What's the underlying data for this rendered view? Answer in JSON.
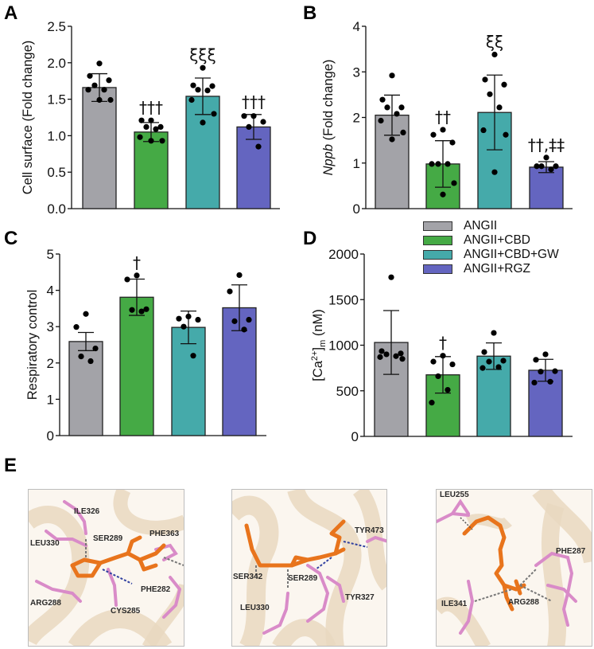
{
  "colors": {
    "ANGII": "#A3A3A8",
    "ANGII+CBD": "#45AA45",
    "ANGII+CBD+GW": "#45AAAA",
    "ANGII+RGZ": "#6465C0",
    "ligand": "#E8741C",
    "residue": "#D98BC8",
    "ribbon": "#E9D8BF",
    "hbond": "#3040A0"
  },
  "legend": {
    "items": [
      {
        "label": "ANGII",
        "color": "#A3A3A8"
      },
      {
        "label": "ANGII+CBD",
        "color": "#45AA45"
      },
      {
        "label": "ANGII+CBD+GW",
        "color": "#45AAAA"
      },
      {
        "label": "ANGII+RGZ",
        "color": "#6465C0"
      }
    ]
  },
  "panels": {
    "A": {
      "label": "A"
    },
    "B": {
      "label": "B"
    },
    "C": {
      "label": "C"
    },
    "D": {
      "label": "D"
    },
    "E": {
      "label": "E"
    }
  },
  "chart_data": [
    {
      "panel": "A",
      "type": "bar",
      "title": "",
      "xlabel": "",
      "ylabel": "Cell surface (Fold change)",
      "ylim": [
        0,
        2.5
      ],
      "yticks": [
        "0.0",
        "0.5",
        "1.0",
        "1.5",
        "2.0",
        "2.5"
      ],
      "grid": false,
      "categories": [
        "ANGII",
        "ANGII+CBD",
        "ANGII+CBD+GW",
        "ANGII+RGZ"
      ],
      "values": [
        1.66,
        1.05,
        1.54,
        1.12
      ],
      "error": [
        0.19,
        0.13,
        0.25,
        0.17
      ],
      "points": [
        [
          1.99,
          1.82,
          1.76,
          1.69,
          1.63,
          1.63,
          1.49,
          1.49
        ],
        [
          1.21,
          1.21,
          1.12,
          1.12,
          1.09,
          0.98,
          0.93,
          0.93
        ],
        [
          1.93,
          1.69,
          1.68,
          1.63,
          1.62,
          1.49,
          1.3,
          1.18
        ],
        [
          1.27,
          1.27,
          1.19,
          1.12,
          0.85
        ]
      ],
      "annotations": [
        "",
        "†††",
        "ξξξ",
        "†††"
      ]
    },
    {
      "panel": "B",
      "type": "bar",
      "title": "",
      "xlabel": "",
      "ylabel": "Nppb (Fold change)",
      "ylabel_italic": "Nppb",
      "ylabel_rest": " (Fold change)",
      "ylim": [
        0,
        4
      ],
      "yticks": [
        "0",
        "1",
        "2",
        "3",
        "4"
      ],
      "grid": false,
      "categories": [
        "ANGII",
        "ANGII+CBD",
        "ANGII+CBD+GW",
        "ANGII+RGZ"
      ],
      "values": [
        2.05,
        0.98,
        2.11,
        0.91
      ],
      "error": [
        0.44,
        0.51,
        0.82,
        0.12
      ],
      "points": [
        [
          2.92,
          2.39,
          2.22,
          2.22,
          2.08,
          1.93,
          1.67,
          1.52
        ],
        [
          1.73,
          1.62,
          1.45,
          0.98,
          0.98,
          0.98,
          0.56,
          0.31
        ],
        [
          3.38,
          2.83,
          2.72,
          2.51,
          2.22,
          1.72,
          1.62,
          0.8
        ],
        [
          1.12,
          0.93,
          0.93,
          0.93,
          0.86
        ]
      ],
      "annotations": [
        "",
        "††",
        "ξξ",
        "††,‡‡"
      ]
    },
    {
      "panel": "C",
      "type": "bar",
      "title": "",
      "xlabel": "",
      "ylabel": "Respiratory control",
      "ylim": [
        0,
        5
      ],
      "yticks": [
        "0",
        "1",
        "2",
        "3",
        "4",
        "5"
      ],
      "grid": false,
      "categories": [
        "ANGII",
        "ANGII+CBD",
        "ANGII+CBD+GW",
        "ANGII+RGZ"
      ],
      "values": [
        2.59,
        3.81,
        2.98,
        3.52
      ],
      "error": [
        0.25,
        0.5,
        0.45,
        0.63
      ],
      "points": [
        [
          3.35,
          2.99,
          2.4,
          2.18,
          2.05
        ],
        [
          4.41,
          4.3,
          3.48,
          3.46,
          3.42
        ],
        [
          3.28,
          3.22,
          3.19,
          3.0,
          2.2
        ],
        [
          4.42,
          3.97,
          3.19,
          3.15,
          2.92
        ]
      ],
      "annotations": [
        "",
        "†",
        "",
        ""
      ]
    },
    {
      "panel": "D",
      "type": "bar",
      "title": "",
      "xlabel": "",
      "ylabel": "[Ca2+]m (nM)",
      "ylim": [
        0,
        2000
      ],
      "yticks": [
        "0",
        "500",
        "1000",
        "1500",
        "2000"
      ],
      "grid": false,
      "categories": [
        "ANGII",
        "ANGII+CBD",
        "ANGII+CBD+GW",
        "ANGII+RGZ"
      ],
      "values": [
        1030,
        675,
        880,
        725
      ],
      "error": [
        350,
        200,
        145,
        120
      ],
      "points": [
        [
          1745,
          935,
          910,
          900,
          880,
          870,
          850
        ],
        [
          885,
          820,
          790,
          660,
          510,
          370
        ],
        [
          1135,
          925,
          830,
          820,
          760,
          750
        ],
        [
          900,
          840,
          715,
          710,
          600,
          590
        ]
      ],
      "annotations": [
        "",
        "†",
        "",
        ""
      ],
      "legend_position": "top-right"
    }
  ],
  "docking": {
    "panels": [
      {
        "residues": [
          "ILE326",
          "LEU330",
          "SER289",
          "PHE363",
          "ARG288",
          "CYS285",
          "PHE282"
        ]
      },
      {
        "residues": [
          "TYR473",
          "SER342",
          "SER289",
          "TYR327",
          "LEU330"
        ]
      },
      {
        "residues": [
          "LEU255",
          "PHE287",
          "ILE341",
          "ARG288"
        ]
      }
    ]
  }
}
